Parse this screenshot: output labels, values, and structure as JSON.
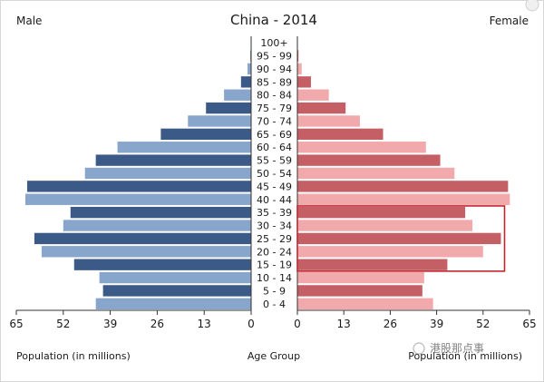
{
  "chart_data": {
    "type": "bar",
    "title": "China - 2014",
    "left_label": "Male",
    "right_label": "Female",
    "center_axis_label": "Age Group",
    "xlabel_left": "Population (in millions)",
    "xlabel_right": "Population (in millions)",
    "xlim": [
      0,
      65
    ],
    "x_ticks": [
      0,
      13,
      26,
      39,
      52,
      65
    ],
    "x_tick_labels": {
      "left": [
        "65",
        "52",
        "39",
        "26",
        "13",
        "0"
      ],
      "right": [
        "0",
        "13",
        "26",
        "39",
        "52",
        "65"
      ]
    },
    "categories": [
      "100+",
      "95 - 99",
      "90 - 94",
      "85 - 89",
      "80 - 84",
      "75 - 79",
      "70 - 74",
      "65 - 69",
      "60 - 64",
      "55 - 59",
      "50 - 54",
      "45 - 49",
      "40 - 44",
      "35 - 39",
      "30 - 34",
      "25 - 29",
      "20 - 24",
      "15 - 19",
      "10 - 14",
      "5 - 9",
      "0 - 4"
    ],
    "series": [
      {
        "side": "left",
        "values": [
          0.1,
          0.2,
          1.0,
          2.8,
          7.5,
          12.5,
          17.5,
          25.0,
          37.0,
          43.0,
          46.0,
          62.0,
          62.5,
          50.0,
          52.0,
          60.0,
          58.0,
          49.0,
          42.0,
          41.0,
          43.0
        ],
        "colors": [
          "#88a6cb",
          "#3c5a88"
        ]
      },
      {
        "side": "right",
        "values": [
          0.1,
          0.3,
          1.2,
          3.8,
          8.8,
          13.5,
          17.5,
          24.0,
          36.0,
          40.0,
          44.0,
          59.0,
          59.5,
          47.0,
          49.0,
          57.0,
          52.0,
          42.0,
          35.5,
          35.0,
          38.0
        ],
        "colors": [
          "#f1a9ab",
          "#c46065"
        ]
      }
    ],
    "highlight_range": [
      "15 - 19",
      "35 - 39"
    ],
    "highlight_color": "#c0262f",
    "grid": false,
    "legend": "none"
  },
  "watermark": "港股那点事"
}
